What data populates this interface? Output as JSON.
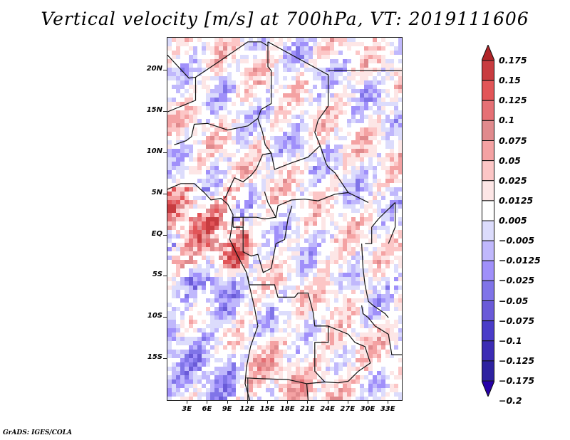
{
  "title": "Vertical velocity [m/s] at 700hPa, VT: 2019111606",
  "footer": "GrADS: IGES/COLA",
  "map": {
    "variable": "Vertical velocity",
    "units": "m/s",
    "level": "700hPa",
    "valid_time": "2019111606",
    "lon_range": [
      0,
      35
    ],
    "lat_range": [
      -20,
      24
    ],
    "y_ticks": [
      {
        "label": "20N",
        "value": 20
      },
      {
        "label": "15N",
        "value": 15
      },
      {
        "label": "10N",
        "value": 10
      },
      {
        "label": "5N",
        "value": 5
      },
      {
        "label": "EQ",
        "value": 0
      },
      {
        "label": "5S",
        "value": -5
      },
      {
        "label": "10S",
        "value": -10
      },
      {
        "label": "15S",
        "value": -15
      }
    ],
    "x_ticks": [
      {
        "label": "3E",
        "value": 3
      },
      {
        "label": "6E",
        "value": 6
      },
      {
        "label": "9E",
        "value": 9
      },
      {
        "label": "12E",
        "value": 12
      },
      {
        "label": "15E",
        "value": 15
      },
      {
        "label": "18E",
        "value": 18
      },
      {
        "label": "21E",
        "value": 21
      },
      {
        "label": "24E",
        "value": 24
      },
      {
        "label": "27E",
        "value": 27
      },
      {
        "label": "30E",
        "value": 30
      },
      {
        "label": "33E",
        "value": 33
      }
    ]
  },
  "colorbar": {
    "levels": [
      {
        "label": "0.175",
        "color": "#b02428"
      },
      {
        "label": "0.15",
        "color": "#c83c40"
      },
      {
        "label": "0.125",
        "color": "#e25558"
      },
      {
        "label": "0.1",
        "color": "#e57075"
      },
      {
        "label": "0.075",
        "color": "#e08a8d"
      },
      {
        "label": "0.05",
        "color": "#f4a2a3"
      },
      {
        "label": "0.025",
        "color": "#fcc6c6"
      },
      {
        "label": "0.0125",
        "color": "#fde6e6"
      },
      {
        "label": "0.005",
        "color": "#ffffff"
      },
      {
        "label": "-0.005",
        "color": "#dcdcfc"
      },
      {
        "label": "-0.0125",
        "color": "#c0b8fc"
      },
      {
        "label": "-0.025",
        "color": "#a090fa"
      },
      {
        "label": "-0.05",
        "color": "#8074e8"
      },
      {
        "label": "-0.075",
        "color": "#6a5ad8"
      },
      {
        "label": "-0.1",
        "color": "#4a3cc8"
      },
      {
        "label": "-0.125",
        "color": "#3c2cb4"
      },
      {
        "label": "-0.175",
        "color": "#2e22a0"
      },
      {
        "label": "-0.2",
        "color": "#2600a8"
      }
    ],
    "top_arrow_color": "#b02428",
    "bottom_arrow_color": "#2600a8"
  }
}
